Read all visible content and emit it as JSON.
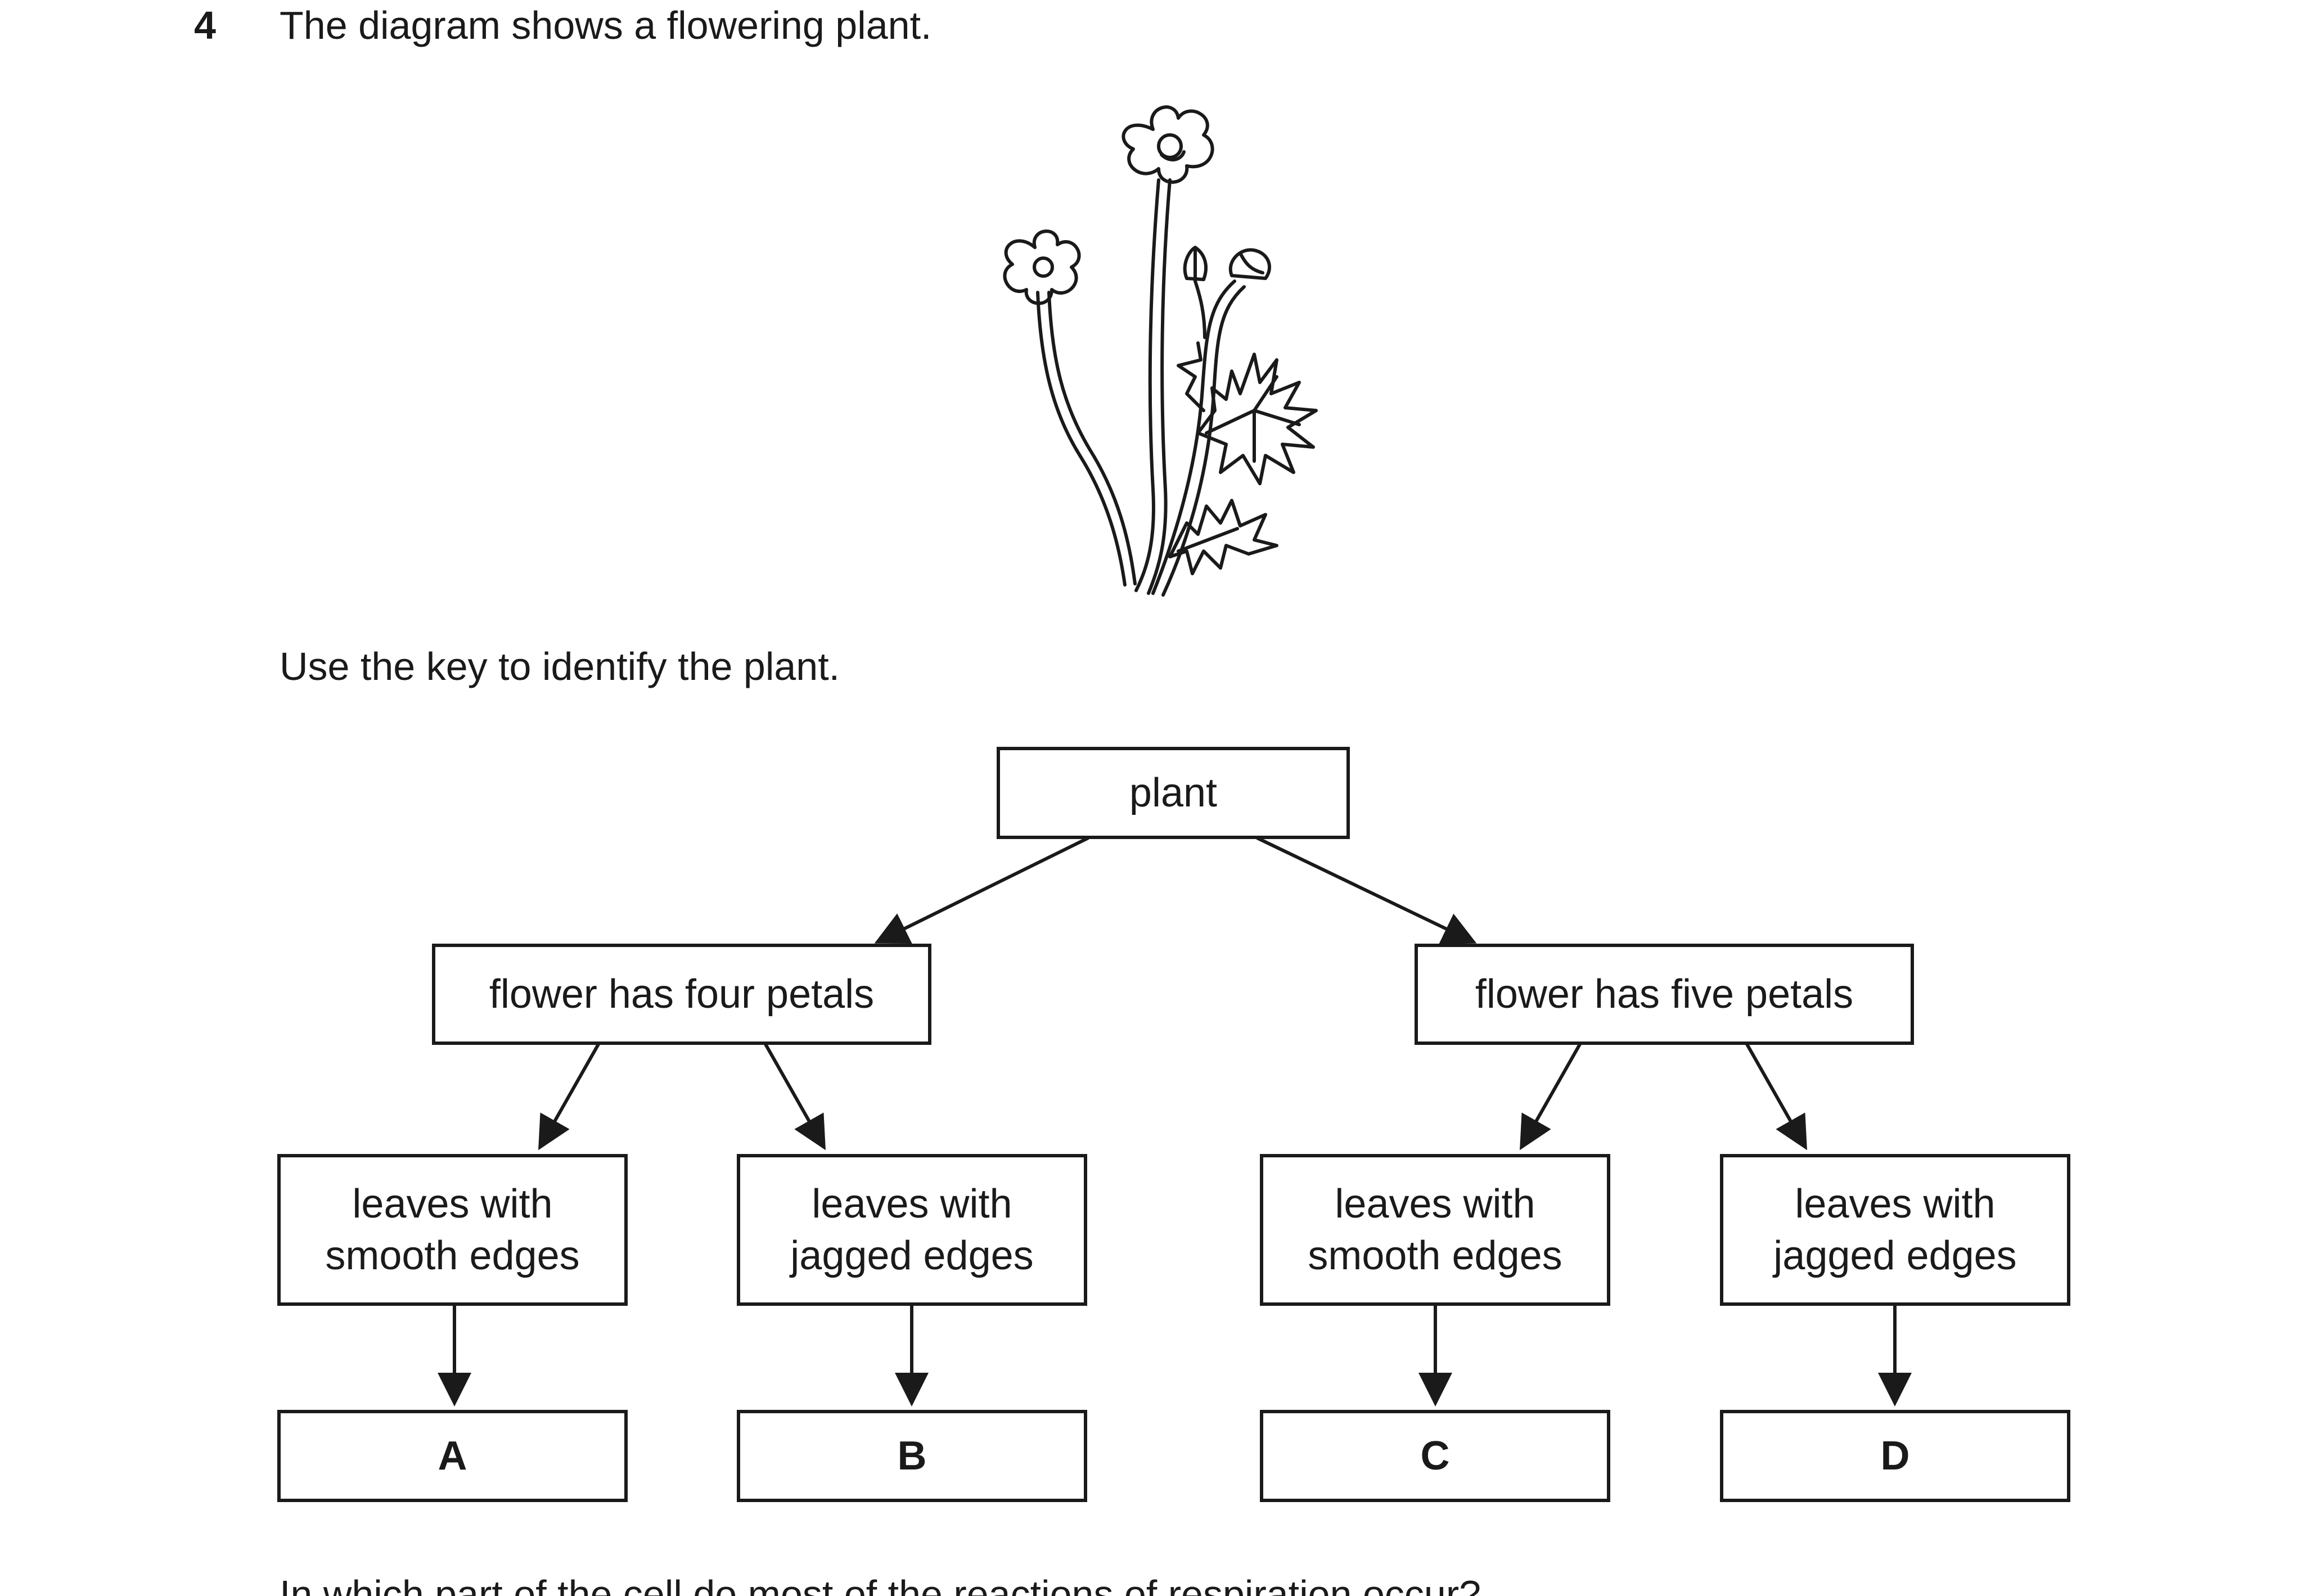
{
  "question": {
    "number": "4",
    "text": "The diagram shows a flowering plant.",
    "instruction": "Use the key to identify the plant.",
    "next_line_partial": "In which part of the cell do most of the reactions of respiration occur?"
  },
  "key": {
    "root": "plant",
    "branch_left": "flower has four petals",
    "branch_right": "flower has five petals",
    "leaves": [
      {
        "line1": "leaves with",
        "line2": "smooth edges"
      },
      {
        "line1": "leaves with",
        "line2": "jagged edges"
      },
      {
        "line1": "leaves with",
        "line2": "smooth edges"
      },
      {
        "line1": "leaves with",
        "line2": "jagged edges"
      }
    ],
    "answers": [
      "A",
      "B",
      "C",
      "D"
    ]
  },
  "colors": {
    "ink": "#1a1a1a",
    "background": "#ffffff"
  }
}
